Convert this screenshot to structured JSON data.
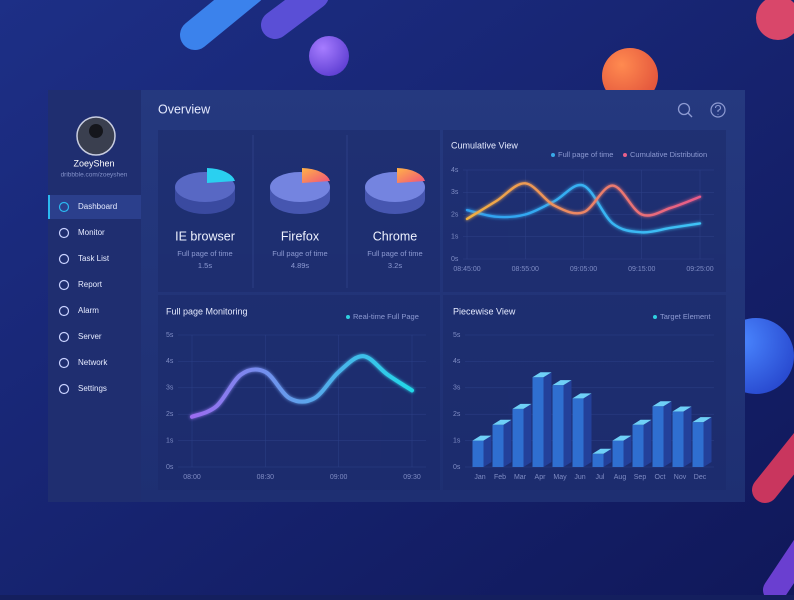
{
  "sidebar": {
    "user": "ZoeyShen",
    "link": "dribbble.com/zoeyshen",
    "menu": [
      "Dashboard",
      "Monitor",
      "Task List",
      "Report",
      "Alarm",
      "Server",
      "Network",
      "Settings"
    ]
  },
  "header": {
    "title": "Overview"
  },
  "browsers": [
    {
      "name": "IE browser",
      "label": "Full page of time",
      "time": "1.5s"
    },
    {
      "name": "Firefox",
      "label": "Full page of time",
      "time": "4.89s"
    },
    {
      "name": "Chrome",
      "label": "Full page of time",
      "time": "3.2s"
    }
  ],
  "chart_data": [
    {
      "type": "line",
      "title": "Cumulative View",
      "grid": true,
      "x": [
        "08:45:00",
        null,
        "08:55:00",
        null,
        "09:05:00",
        null,
        "09:15:00",
        null,
        "09:25:00"
      ],
      "series": [
        {
          "name": "Full page of time",
          "color": "#39a9e8",
          "gradient": [
            "#2f9ff0",
            "#3fc3f5"
          ],
          "values": [
            2.2,
            1.9,
            2.0,
            2.6,
            3.3,
            1.6,
            1.2,
            1.4,
            1.6
          ]
        },
        {
          "name": "Cumulative Distribution",
          "color": "#e8608a",
          "gradient": [
            "#f0b040",
            "#e85a8a"
          ],
          "values": [
            1.8,
            2.6,
            3.4,
            2.4,
            2.1,
            3.3,
            2.0,
            2.3,
            2.8
          ]
        }
      ],
      "ylim": [
        0,
        4
      ],
      "yticks": [
        {
          "value": 0,
          "label": "0s"
        },
        {
          "value": 1,
          "label": "1s"
        },
        {
          "value": 2,
          "label": "2s"
        },
        {
          "value": 3,
          "label": "3s"
        },
        {
          "value": 4,
          "label": "4s"
        }
      ]
    },
    {
      "type": "line",
      "title": "Full page Monitoring",
      "grid": true,
      "x": [
        "08:00",
        null,
        null,
        "08:30",
        null,
        null,
        "09:00",
        null,
        null,
        "09:30"
      ],
      "series": [
        {
          "name": "Real-time Full Page",
          "color": "#2fd0e0",
          "gradient": [
            "#9b6cf0",
            "#22d8e8"
          ],
          "values": [
            1.9,
            2.3,
            3.5,
            3.6,
            2.6,
            2.6,
            3.6,
            4.2,
            3.5,
            2.9
          ]
        }
      ],
      "ylim": [
        0,
        5
      ],
      "yticks": [
        {
          "value": 0,
          "label": "0s"
        },
        {
          "value": 1,
          "label": "1s"
        },
        {
          "value": 2,
          "label": "2s"
        },
        {
          "value": 3,
          "label": "3s"
        },
        {
          "value": 4,
          "label": "4s"
        },
        {
          "value": 5,
          "label": "5s"
        }
      ]
    },
    {
      "type": "bar",
      "title": "Piecewise View",
      "grid": true,
      "x": [
        "Jan",
        "Feb",
        "Mar",
        "Apr",
        "May",
        "Jun",
        "Jul",
        "Aug",
        "Sep",
        "Oct",
        "Nov",
        "Dec"
      ],
      "series": [
        {
          "name": "Target Element",
          "color": "#2fd0e0",
          "values": [
            1.0,
            1.6,
            2.2,
            3.4,
            3.1,
            2.6,
            0.5,
            1.0,
            1.6,
            2.3,
            2.1,
            1.7
          ]
        }
      ],
      "bar_colors": {
        "front": "#2f6fd0",
        "top": "#6fd0f7",
        "side": "#23409a"
      },
      "ylim": [
        0,
        5
      ],
      "yticks": [
        {
          "value": 0,
          "label": "0s"
        },
        {
          "value": 1,
          "label": "1s"
        },
        {
          "value": 2,
          "label": "2s"
        },
        {
          "value": 3,
          "label": "3s"
        },
        {
          "value": 4,
          "label": "4s"
        },
        {
          "value": 5,
          "label": "5s"
        }
      ]
    }
  ]
}
